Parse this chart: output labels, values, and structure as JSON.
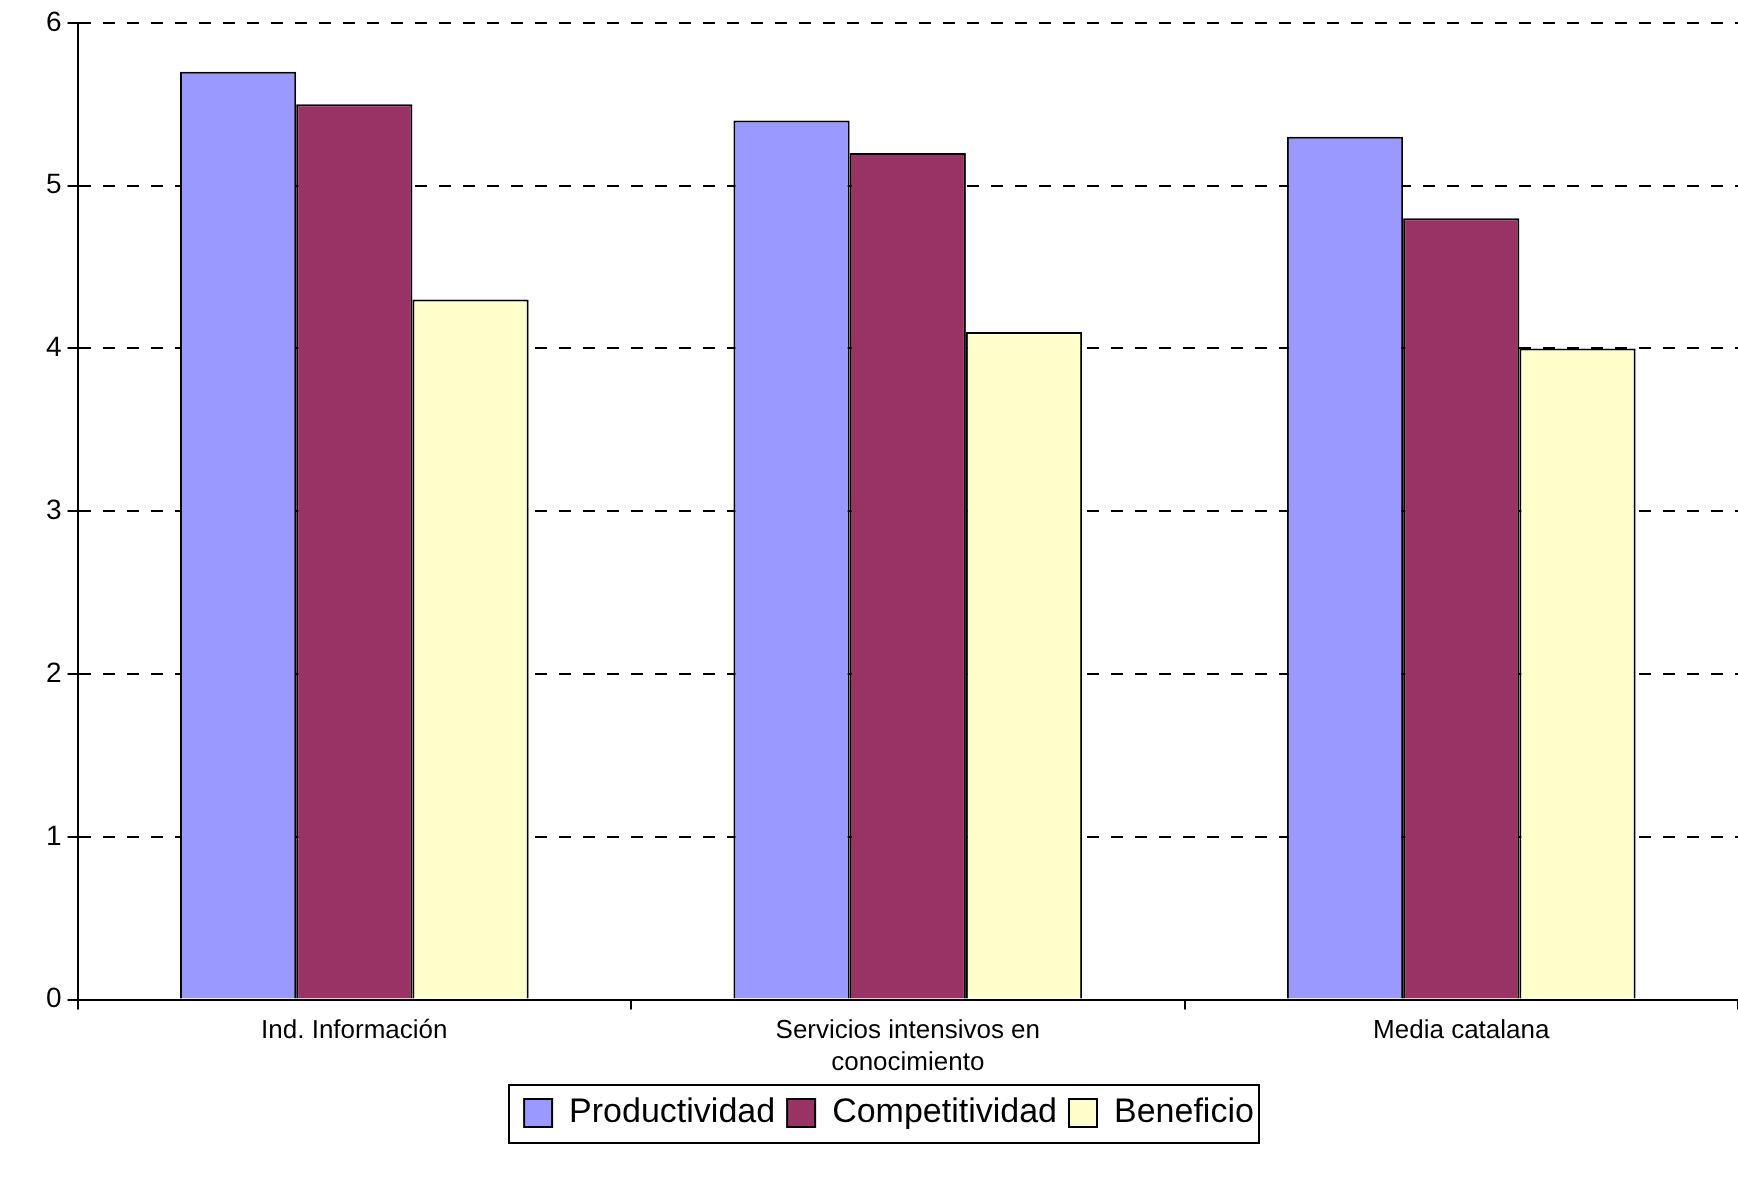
{
  "chart_data": {
    "type": "bar",
    "categories": [
      "Ind. Información",
      "Servicios intensivos en conocimiento",
      "Media catalana"
    ],
    "series": [
      {
        "name": "Productividad",
        "color": "#9999ff",
        "values": [
          5.7,
          5.4,
          5.3
        ]
      },
      {
        "name": "Competitividad",
        "color": "#993366",
        "values": [
          5.5,
          5.2,
          4.8
        ]
      },
      {
        "name": "Beneficio",
        "color": "#ffffcc",
        "values": [
          4.3,
          4.1,
          4.0
        ]
      }
    ],
    "ylim": [
      0,
      6
    ],
    "yticks": [
      0,
      1,
      2,
      3,
      4,
      5,
      6
    ],
    "grid": "y",
    "legend": "bottom"
  }
}
